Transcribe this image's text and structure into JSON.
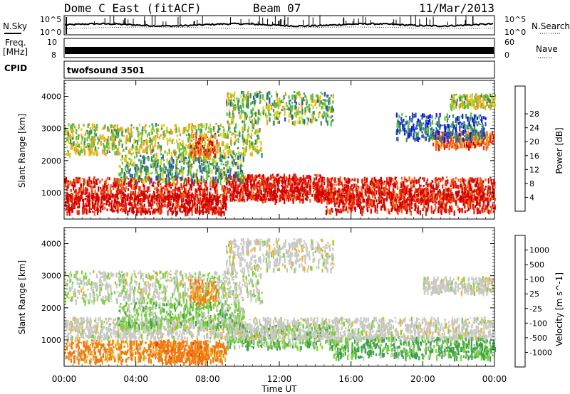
{
  "header": {
    "radar": "Dome C East (fitACF)",
    "beam": "Beam 07",
    "date": "11/Mar/2013"
  },
  "strips": {
    "nsky": {
      "label": "N.Sky",
      "tick_top": "10^5",
      "tick_bottom": "10^0"
    },
    "nsearch": {
      "label": "N.Search",
      "tick_top": "10^5",
      "tick_bottom": "10^0"
    },
    "freq": {
      "label_line1": "Freq.",
      "label_line2": "[MHz]",
      "tick_top": "10",
      "tick_bottom": "8"
    },
    "nave": {
      "label": "Nave",
      "tick_top": "60",
      "tick_bottom": "0"
    },
    "cpid": {
      "label": "CPID",
      "value": "twofsound 3501"
    }
  },
  "colors": {
    "power": [
      "#1010f0",
      "#2a52b8",
      "#3b8a5a",
      "#56c23e",
      "#d8d020",
      "#f0a020",
      "#f06418",
      "#e82810",
      "#d00000"
    ],
    "velocity": [
      "#e00000",
      "#f04010",
      "#f07a10",
      "#f0b020",
      "#c8c8c4",
      "#7ad23a",
      "#3ea050",
      "#2a70a0",
      "#1828c0"
    ]
  },
  "chart_data": [
    {
      "type": "heatmap",
      "name": "Power",
      "xlabel": "",
      "ylabel": "Slant Range [km]",
      "colorbar_label": "Power [dB]",
      "colorbar_ticks": [
        "4",
        "8",
        "12",
        "16",
        "20",
        "24",
        "28"
      ],
      "clim": [
        0,
        30
      ],
      "xlim_hours": [
        0,
        24
      ],
      "ylim_km": [
        180,
        4500
      ],
      "y_ticks": [
        "1000",
        "2000",
        "3000",
        "4000"
      ],
      "x_ticks_hours": [
        0,
        4,
        8,
        12,
        16,
        20,
        24
      ],
      "bands": [
        {
          "start_h": 0.0,
          "end_h": 24.0,
          "center_km": 1150,
          "width_km": 450,
          "value": 26
        },
        {
          "start_h": 0.0,
          "end_h": 9.0,
          "center_km": 700,
          "width_km": 350,
          "value": 28
        },
        {
          "start_h": 9.0,
          "end_h": 14.5,
          "center_km": 1200,
          "width_km": 500,
          "value": 28
        },
        {
          "start_h": 14.5,
          "end_h": 24.0,
          "center_km": 800,
          "width_km": 450,
          "value": 27
        },
        {
          "start_h": 0.0,
          "end_h": 11.0,
          "center_km": 2700,
          "width_km": 600,
          "value": 14
        },
        {
          "start_h": 7.0,
          "end_h": 8.5,
          "center_km": 2500,
          "width_km": 500,
          "value": 24
        },
        {
          "start_h": 3.0,
          "end_h": 10.0,
          "center_km": 1800,
          "width_km": 500,
          "value": 10
        },
        {
          "start_h": 20.5,
          "end_h": 24.0,
          "center_km": 2700,
          "width_km": 300,
          "value": 22
        },
        {
          "start_h": 18.5,
          "end_h": 23.5,
          "center_km": 3100,
          "width_km": 500,
          "value": 6
        },
        {
          "start_h": 9.0,
          "end_h": 15.0,
          "center_km": 3700,
          "width_km": 600,
          "value": 12
        },
        {
          "start_h": 21.5,
          "end_h": 24.0,
          "center_km": 3900,
          "width_km": 250,
          "value": 14
        }
      ]
    },
    {
      "type": "heatmap",
      "name": "Velocity",
      "xlabel": "Time UT",
      "ylabel": "Slant Range [km]",
      "colorbar_label": "Velocity [m s^-1]",
      "colorbar_ticks": [
        "-1000",
        "-500",
        "-100",
        "-25",
        "25",
        "100",
        "500",
        "1000"
      ],
      "xlim_hours": [
        0,
        24
      ],
      "ylim_km": [
        180,
        4500
      ],
      "y_ticks": [
        "1000",
        "2000",
        "3000",
        "4000"
      ],
      "x_ticks": [
        "00:00",
        "04:00",
        "08:00",
        "12:00",
        "16:00",
        "20:00",
        "00:00"
      ],
      "x_ticks_hours": [
        0,
        4,
        8,
        12,
        16,
        20,
        24
      ],
      "bands": [
        {
          "start_h": 0.0,
          "end_h": 9.0,
          "center_km": 700,
          "width_km": 400,
          "value": -150
        },
        {
          "start_h": 5.0,
          "end_h": 8.0,
          "center_km": 650,
          "width_km": 450,
          "value": -300
        },
        {
          "start_h": 9.0,
          "end_h": 15.0,
          "center_km": 1150,
          "width_km": 450,
          "value": 80
        },
        {
          "start_h": 15.0,
          "end_h": 24.0,
          "center_km": 800,
          "width_km": 400,
          "value": 120
        },
        {
          "start_h": 0.0,
          "end_h": 24.0,
          "center_km": 1400,
          "width_km": 400,
          "value": 0
        },
        {
          "start_h": 0.0,
          "end_h": 11.0,
          "center_km": 2700,
          "width_km": 600,
          "value": 10
        },
        {
          "start_h": 7.0,
          "end_h": 8.5,
          "center_km": 2500,
          "width_km": 500,
          "value": -150
        },
        {
          "start_h": 20.0,
          "end_h": 24.0,
          "center_km": 2750,
          "width_km": 300,
          "value": 0
        },
        {
          "start_h": 9.0,
          "end_h": 15.0,
          "center_km": 3700,
          "width_km": 600,
          "value": 0
        },
        {
          "start_h": 3.0,
          "end_h": 10.0,
          "center_km": 1800,
          "width_km": 500,
          "value": 60
        }
      ]
    }
  ]
}
